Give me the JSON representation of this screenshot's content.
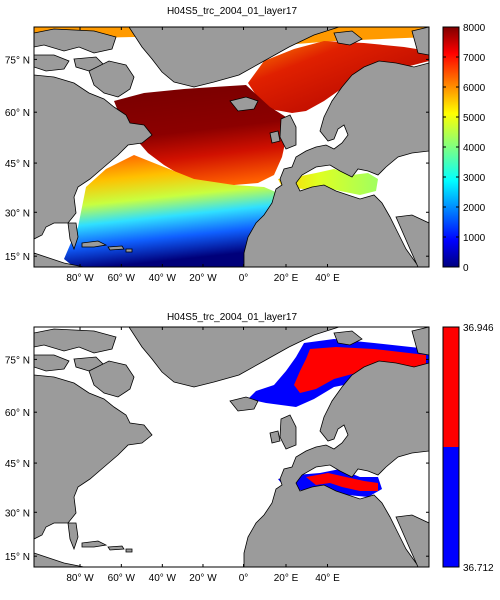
{
  "panels": [
    {
      "title": "H04S5_trc_2004_01_layer17",
      "colormap": "jet",
      "colorbar": {
        "ticks": [
          "8000",
          "7000",
          "6000",
          "5000",
          "4000",
          "3000",
          "2000",
          "1000",
          "0"
        ],
        "range": [
          0,
          8000
        ]
      },
      "x_ticks": [
        "80° W",
        "60° W",
        "40° W",
        "20° W",
        "0°",
        "20° E",
        "40° E"
      ],
      "y_ticks": [
        "75° N",
        "60° N",
        "45° N",
        "30° N",
        "15° N"
      ]
    },
    {
      "title": "H04S5_trc_2004_01_layer17",
      "colormap": "two-class red/blue",
      "colorbar": {
        "ticks": [
          "36.946",
          "36.712"
        ],
        "range": [
          36.712,
          36.946
        ],
        "colors": [
          "#ff0000",
          "#0000ff"
        ]
      },
      "x_ticks": [
        "80° W",
        "60° W",
        "40° W",
        "20° W",
        "0°",
        "20° E",
        "40° E"
      ],
      "y_ticks": [
        "75° N",
        "60° N",
        "45° N",
        "30° N",
        "15° N"
      ]
    }
  ],
  "map": {
    "lon_range": [
      -90,
      50
    ],
    "lat_range": [
      10,
      85
    ],
    "land_color": "#9b9b9b",
    "ocean_color": "#ffffff"
  }
}
